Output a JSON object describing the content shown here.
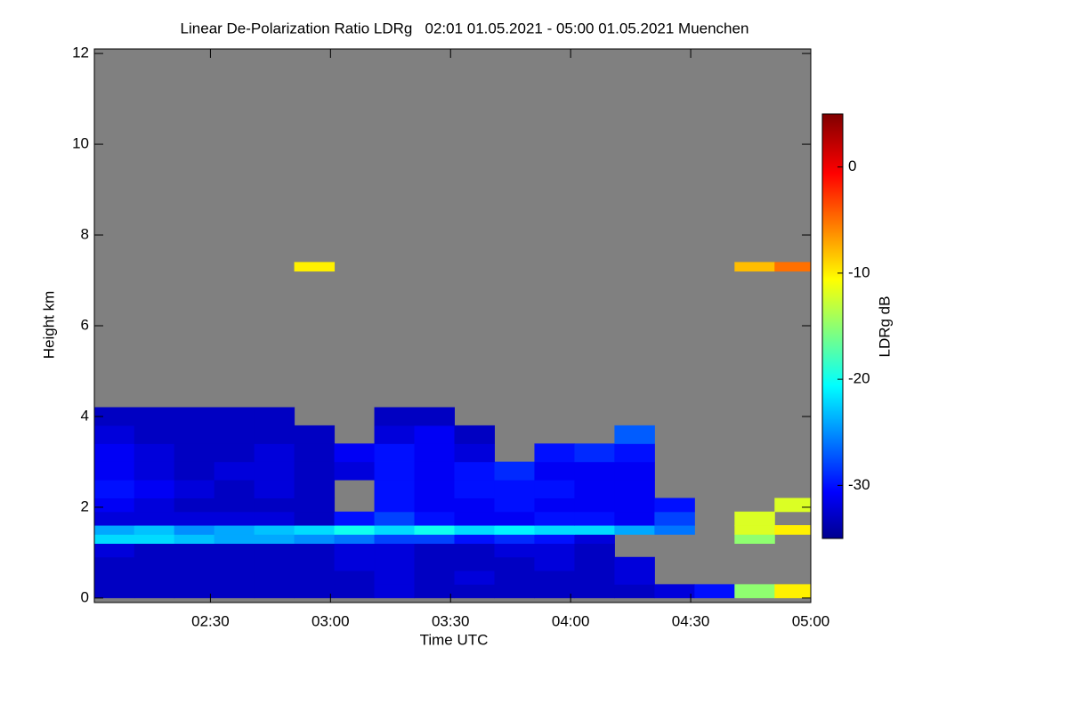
{
  "chart_data": {
    "type": "heatmap",
    "title": "Linear De-Polarization Ratio LDRg   02:01 01.05.2021 - 05:00 01.05.2021 Muenchen",
    "x_label": "Time UTC",
    "y_label": "Height km",
    "colorbar_label": "LDRg dB",
    "background_color": "#808080",
    "xlim": [
      121,
      300
    ],
    "xticks": [
      {
        "value": 150,
        "label": "02:30"
      },
      {
        "value": 180,
        "label": "03:00"
      },
      {
        "value": 210,
        "label": "03:30"
      },
      {
        "value": 240,
        "label": "04:00"
      },
      {
        "value": 270,
        "label": "04:30"
      },
      {
        "value": 300,
        "label": "05:00"
      }
    ],
    "ylim": [
      -0.1,
      12.1
    ],
    "yticks": [
      0,
      2,
      4,
      6,
      8,
      10,
      12
    ],
    "clim": [
      -35,
      5
    ],
    "cticks": [
      -30,
      -20,
      -10,
      0
    ],
    "x_edges": [
      121,
      131,
      141,
      151,
      161,
      171,
      181,
      191,
      201,
      211,
      221,
      231,
      241,
      251,
      261,
      271,
      281,
      291,
      300
    ],
    "y_edges": [
      0,
      0.3,
      0.6,
      0.9,
      1.2,
      1.4,
      1.6,
      1.9,
      2.2,
      2.6,
      3.0,
      3.4,
      3.8,
      4.2,
      7.2,
      7.4
    ],
    "values": [
      [
        -33,
        -33,
        -33,
        -33,
        -33,
        -33,
        -33,
        -32,
        -33,
        -33,
        -33,
        -33,
        -33,
        -33,
        -32,
        -30,
        -15,
        -10
      ],
      [
        -33,
        -33,
        -33,
        -33,
        -33,
        -33,
        -33,
        -32,
        -33,
        -32,
        -33,
        -33,
        -33,
        -32,
        null,
        null,
        null,
        null
      ],
      [
        -33,
        -33,
        -33,
        -33,
        -33,
        -33,
        -32,
        -32,
        -33,
        -33,
        -33,
        -32,
        -33,
        -32,
        null,
        null,
        null,
        null
      ],
      [
        -32,
        -33,
        -33,
        -33,
        -33,
        -33,
        -32,
        -32,
        -33,
        -33,
        -32,
        -32,
        -33,
        null,
        null,
        null,
        null,
        null
      ],
      [
        -22,
        -22,
        -23,
        -24,
        -24,
        -25,
        -26,
        -28,
        -28,
        -30,
        -29,
        -30,
        -32,
        null,
        null,
        null,
        -15,
        null
      ],
      [
        -24,
        -23,
        -25,
        -24,
        -23,
        -22,
        -20,
        -22,
        -20,
        -22,
        -21,
        -22,
        -22,
        -24,
        -26,
        null,
        -12,
        -10
      ],
      [
        -32,
        -32,
        -32,
        -32,
        -32,
        -33,
        -30,
        -28,
        -30,
        -31,
        -31,
        -30,
        -30,
        -31,
        -28,
        null,
        -12,
        null
      ],
      [
        -31,
        -32,
        -33,
        -33,
        -33,
        -33,
        null,
        -30,
        -31,
        -31,
        -30,
        -31,
        -31,
        -31,
        -30,
        null,
        null,
        -12
      ],
      [
        -30,
        -31,
        -32,
        -33,
        -32,
        -33,
        null,
        -30,
        -31,
        -30,
        -30,
        -30,
        -31,
        -31,
        null,
        null,
        null,
        null
      ],
      [
        -31,
        -32,
        -33,
        -32,
        -32,
        -33,
        -32,
        -30,
        -31,
        -30,
        -29,
        -31,
        -31,
        -31,
        null,
        null,
        null,
        null
      ],
      [
        -31,
        -32,
        -33,
        -33,
        -32,
        -33,
        -31,
        -30,
        -31,
        -32,
        null,
        -30,
        -29,
        -30,
        null,
        null,
        null,
        null
      ],
      [
        -32,
        -33,
        -33,
        -33,
        -33,
        -33,
        null,
        -32,
        -31,
        -33,
        null,
        null,
        null,
        -27,
        null,
        null,
        null,
        null
      ],
      [
        -33,
        -33,
        -33,
        -33,
        -33,
        null,
        null,
        -33,
        -33,
        null,
        null,
        null,
        null,
        null,
        null,
        null,
        null,
        null
      ],
      [
        null,
        null,
        null,
        null,
        null,
        null,
        null,
        null,
        null,
        null,
        null,
        null,
        null,
        null,
        null,
        null,
        null,
        null
      ],
      [
        null,
        null,
        null,
        null,
        null,
        -10,
        null,
        null,
        null,
        null,
        null,
        null,
        null,
        null,
        null,
        null,
        -8,
        -5
      ]
    ]
  }
}
